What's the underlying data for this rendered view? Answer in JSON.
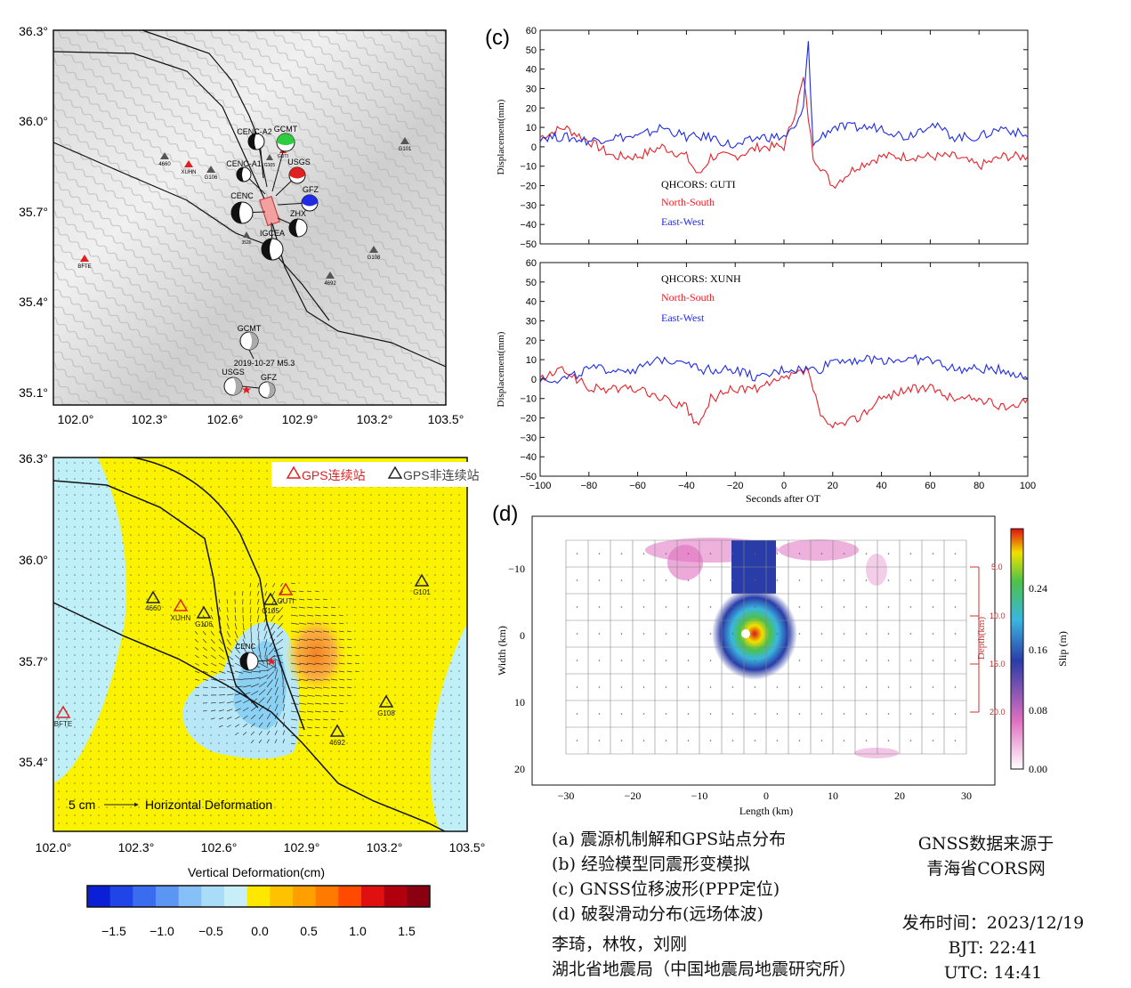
{
  "panel_a": {
    "lat_ticks": [
      "36.3°",
      "36.0°",
      "35.7°",
      "35.4°",
      "35.1°"
    ],
    "lon_ticks": [
      "102.0°",
      "102.3°",
      "102.6°",
      "102.9°",
      "103.2°",
      "103.5°"
    ],
    "stations_gray": [
      "4660",
      "G106",
      "G105",
      "G101",
      "G108",
      "4692",
      "3526"
    ],
    "stations_red": [
      "XUHN",
      "GUTI",
      "BFTE"
    ],
    "mechanism_labels": [
      "CENC-A2",
      "GCMT",
      "CENC-A1",
      "USGS",
      "GFZ",
      "CENC",
      "ZHX",
      "IGCEA"
    ],
    "event2019": {
      "gcmt": "GCMT",
      "date": "2019-10-27 M5.3",
      "usgs": "USGS",
      "gfz": "GFZ"
    }
  },
  "panel_b": {
    "legend_continuous": "GPS连续站",
    "legend_noncontinuous": "GPS非连续站",
    "scale_label": "5 cm",
    "scale_text": "Horizontal Deformation",
    "xlabel": "Vertical Deformation(cm)",
    "lat_ticks": [
      "36.3°",
      "36.0°",
      "35.7°",
      "35.4°"
    ],
    "lon_ticks": [
      "102.0°",
      "102.3°",
      "102.6°",
      "102.9°",
      "103.2°",
      "103.5°"
    ],
    "colorbar_ticks": [
      "−1.5",
      "−1.0",
      "−0.5",
      "0.0",
      "0.5",
      "1.0",
      "1.5"
    ],
    "stations": [
      "4660",
      "XUHN",
      "G106",
      "G105",
      "GUTI",
      "G101",
      "CENC",
      "G108",
      "4692",
      "BFTE"
    ]
  },
  "panel_c": {
    "label": "(c)",
    "ylabel": "Displacement(mm)",
    "xlabel": "Seconds after OT",
    "top_title": "QHCORS: GUTI",
    "bottom_title": "QHCORS: XUNH",
    "ns_label": "North-South",
    "ew_label": "East-West",
    "y_ticks": [
      "60",
      "50",
      "40",
      "30",
      "20",
      "10",
      "0",
      "−10",
      "−20",
      "−30",
      "−40",
      "−50"
    ],
    "x_ticks": [
      "−100",
      "−80",
      "−60",
      "−40",
      "−20",
      "0",
      "20",
      "40",
      "60",
      "80",
      "100"
    ]
  },
  "panel_d": {
    "label": "(d)",
    "xlabel": "Length (km)",
    "ylabel": "Width (km)",
    "depth_label": "Depth(km)",
    "slip_label": "Slip (m)",
    "x_ticks": [
      "−30",
      "−20",
      "−10",
      "0",
      "10",
      "20",
      "30"
    ],
    "y_ticks": [
      "−10",
      "0",
      "10",
      "20"
    ],
    "depth_ticks": [
      "5.0",
      "10.0",
      "15.0",
      "20.0"
    ],
    "cbar_ticks": [
      "0.24",
      "0.16",
      "0.08",
      "0.00"
    ]
  },
  "chart_data": [
    {
      "type": "line",
      "title": "QHCORS: GUTI",
      "xlabel": "Seconds after OT",
      "ylabel": "Displacement(mm)",
      "xlim": [
        -100,
        100
      ],
      "ylim": [
        -50,
        60
      ],
      "x": [
        -100,
        -90,
        -80,
        -70,
        -60,
        -50,
        -40,
        -35,
        -30,
        -20,
        -10,
        0,
        5,
        8,
        10,
        12,
        15,
        20,
        30,
        40,
        50,
        60,
        70,
        80,
        90,
        100
      ],
      "series": [
        {
          "name": "North-South",
          "color": "#e8202a",
          "values": [
            5,
            10,
            3,
            -5,
            -5,
            0,
            -5,
            -15,
            -5,
            -5,
            0,
            0,
            20,
            35,
            15,
            -5,
            -10,
            -20,
            -10,
            -5,
            -5,
            -5,
            -5,
            -10,
            -5,
            -5
          ]
        },
        {
          "name": "East-West",
          "color": "#1f2be6",
          "values": [
            5,
            5,
            3,
            5,
            5,
            10,
            5,
            5,
            5,
            0,
            5,
            5,
            10,
            20,
            55,
            0,
            5,
            10,
            10,
            10,
            5,
            12,
            5,
            5,
            10,
            5
          ]
        }
      ]
    },
    {
      "type": "line",
      "title": "QHCORS: XUNH",
      "xlabel": "Seconds after OT",
      "ylabel": "Displacement(mm)",
      "xlim": [
        -100,
        100
      ],
      "ylim": [
        -50,
        60
      ],
      "x": [
        -100,
        -90,
        -80,
        -70,
        -60,
        -50,
        -40,
        -35,
        -30,
        -20,
        -10,
        0,
        10,
        15,
        20,
        30,
        40,
        50,
        60,
        70,
        80,
        90,
        100
      ],
      "series": [
        {
          "name": "North-South",
          "color": "#e8202a",
          "values": [
            0,
            5,
            -5,
            -5,
            -5,
            -10,
            -15,
            -25,
            -10,
            -5,
            -5,
            0,
            5,
            -20,
            -25,
            -20,
            -10,
            -5,
            -5,
            -10,
            -10,
            -15,
            -10
          ]
        },
        {
          "name": "East-West",
          "color": "#1f2be6",
          "values": [
            0,
            0,
            5,
            5,
            5,
            10,
            10,
            5,
            5,
            5,
            0,
            5,
            5,
            5,
            10,
            10,
            10,
            10,
            10,
            5,
            5,
            5,
            0
          ]
        }
      ]
    }
  ],
  "captions": {
    "a": "(a) 震源机制解和GPS站点分布",
    "b": "(b) 经验模型同震形变模拟",
    "c": "(c) GNSS位移波形(PPP定位)",
    "d": "(d) 破裂滑动分布(远场体波)",
    "source1": "GNSS数据来源于",
    "source2": "青海省CORS网",
    "authors": "李琦，林牧，刘刚",
    "institute": "湖北省地震局（中国地震局地震研究所）",
    "release": "发布时间：2023/12/19",
    "bjt": "BJT: 22:41",
    "utc": "UTC: 14:41"
  }
}
